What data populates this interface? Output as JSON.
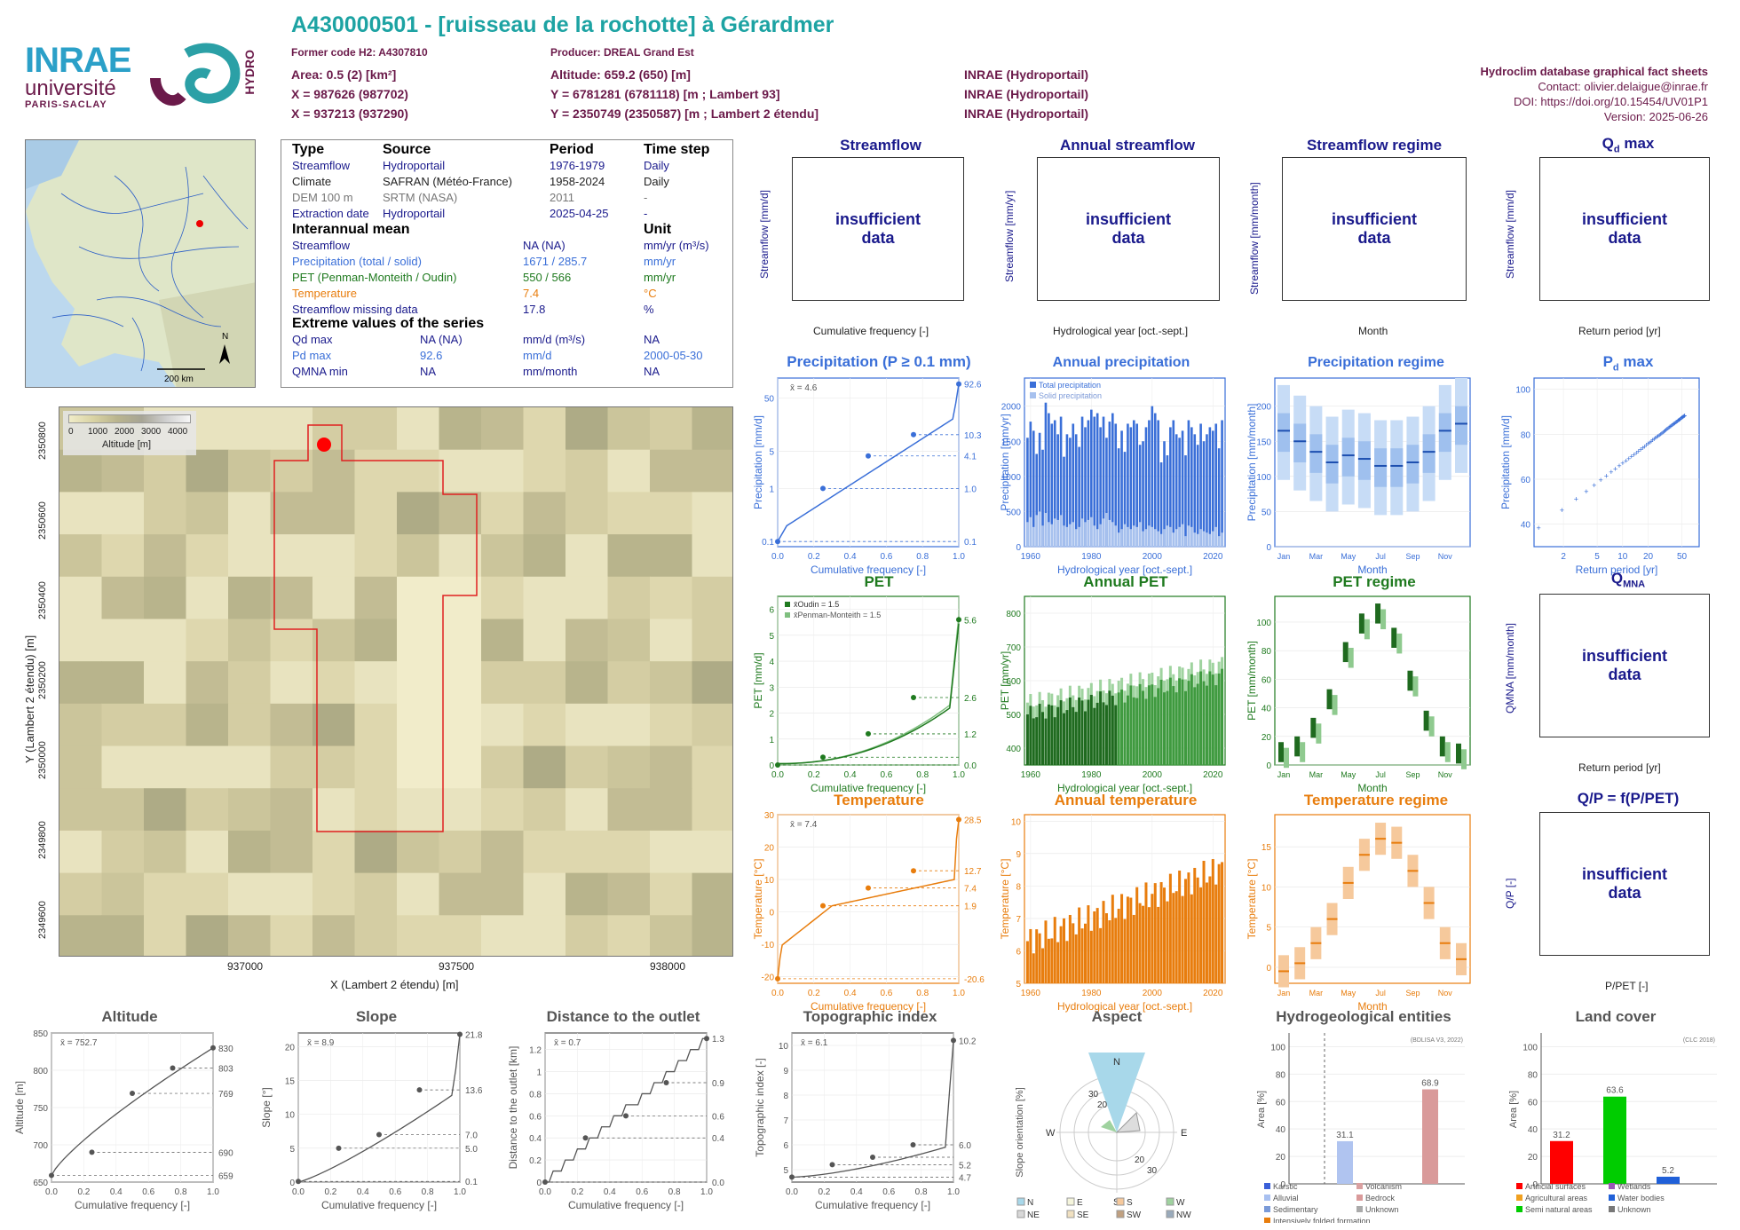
{
  "header": {
    "title": "A430000501 - [ruisseau de la rochotte] à Gérardmer",
    "former_code": "Former code H2: A4307810",
    "producer": "Producer: DREAL Grand Est",
    "area": "Area: 0.5 (2) [km²]",
    "altitude": "Altitude: 659.2 (650) [m]",
    "x_l93": "X = 987626 (987702)",
    "y_l93": "Y = 6781281 (6781118) [m ; Lambert 93]",
    "x_l2": "X = 937213 (937290)",
    "y_l2": "Y = 2350749 (2350587) [m ; Lambert 2 étendu]",
    "src1": "INRAE (Hydroportail)",
    "src2": "INRAE (Hydroportail)",
    "src3": "INRAE (Hydroportail)",
    "db_title": "Hydroclim database graphical fact sheets",
    "contact": "Contact: olivier.delaigue@inrae.fr",
    "doi": "DOI: https://doi.org/10.15454/UV01P1",
    "version": "Version: 2025-06-26"
  },
  "logos": {
    "inrae": "INRAE",
    "universite": "université",
    "paris_saclay": "PARIS-SACLAY",
    "hydro": "HYDRO"
  },
  "info": {
    "headers": [
      "Type",
      "Source",
      "Period",
      "Time step"
    ],
    "sources": [
      {
        "type": "Streamflow",
        "source": "Hydroportail",
        "period": "1976-1979",
        "step": "Daily",
        "color": "#1a1a8c"
      },
      {
        "type": "Climate",
        "source": "SAFRAN (Météo-France)",
        "period": "1958-2024",
        "step": "Daily",
        "color": "#222222"
      },
      {
        "type": "DEM 100 m",
        "source": "SRTM (NASA)",
        "period": "2011",
        "step": "-",
        "color": "#777777"
      },
      {
        "type": "Extraction date",
        "source": "Hydroportail",
        "period": "2025-04-25",
        "step": "-",
        "color": "#1a1a8c"
      }
    ],
    "interannual_title": "Interannual mean",
    "unit_title": "Unit",
    "means": [
      {
        "label": "Streamflow",
        "value": "NA (NA)",
        "unit": "mm/yr (m³/s)",
        "color": "#1a1a8c"
      },
      {
        "label": "Precipitation (total / solid)",
        "value": "1671 / 285.7",
        "unit": "mm/yr",
        "color": "#3a6fd8"
      },
      {
        "label": "PET (Penman-Monteith / Oudin)",
        "value": "550 / 566",
        "unit": "mm/yr",
        "color": "#1f7a1f"
      },
      {
        "label": "Temperature",
        "value": "7.4",
        "unit": "°C",
        "color": "#e87d0d"
      },
      {
        "label": "Streamflow missing data",
        "value": "17.8",
        "unit": "%",
        "color": "#1a1a8c"
      }
    ],
    "extreme_title": "Extreme values of the series",
    "extremes": [
      {
        "label": "Qd max",
        "value": "NA (NA)",
        "unit": "mm/d (m³/s)",
        "date": "NA",
        "color": "#1a1a8c"
      },
      {
        "label": "Pd max",
        "value": "92.6",
        "unit": "mm/d",
        "date": "2000-05-30",
        "color": "#3a6fd8"
      },
      {
        "label": "QMNA min",
        "value": "NA",
        "unit": "mm/month",
        "date": "NA",
        "color": "#1a1a8c"
      }
    ]
  },
  "overview_map": {
    "north": "N",
    "scale": "200 km"
  },
  "dem_map": {
    "legend_title": "Altitude [m]",
    "legend_ticks": [
      "0",
      "1000",
      "2000",
      "3000",
      "4000"
    ],
    "xlabel": "X (Lambert 2 étendu) [m]",
    "ylabel": "Y (Lambert 2 étendu) [m]",
    "xticks": [
      "937000",
      "937500",
      "938000"
    ],
    "yticks": [
      "2350800",
      "2350600",
      "2350400",
      "2350200",
      "2350000",
      "2349800",
      "2349600"
    ]
  },
  "panels": {
    "streamflow": {
      "title": "Streamflow",
      "ylabel": "Streamflow [mm/d]",
      "xlabel": "Cumulative frequency [-]",
      "msg": "insufficient data"
    },
    "annual_streamflow": {
      "title": "Annual streamflow",
      "ylabel": "Streamflow [mm/yr]",
      "xlabel": "Hydrological year [oct.-sept.]",
      "msg": "insufficient data"
    },
    "streamflow_regime": {
      "title": "Streamflow regime",
      "ylabel": "Streamflow [mm/month]",
      "xlabel": "Month",
      "msg": "insufficient data"
    },
    "qd_max": {
      "title": "Q",
      "title_sub": "d",
      "title_suffix": " max",
      "ylabel": "Streamflow [mm/d]",
      "xlabel": "Return period [yr]",
      "msg": "insufficient data"
    },
    "qmna": {
      "title": "Q",
      "title_sub": "MNA",
      "ylabel": "QMNA [mm/month]",
      "xlabel": "Return period [yr]",
      "msg": "insufficient data"
    },
    "qp": {
      "title": "Q/P = f(P/PET)",
      "ylabel": "Q/P [-]",
      "xlabel": "P/PET [-]",
      "msg": "insufficient data"
    },
    "precip": {
      "title": "Precipitation (P ≥ 0.1 mm)",
      "ylabel": "Precipitation [mm/d]",
      "xlabel": "Cumulative frequency [-]",
      "mean": "x̄ = 4.6"
    },
    "annual_precip": {
      "title": "Annual precipitation",
      "ylabel": "Precipitation [mm/yr]",
      "xlabel": "Hydrological year [oct.-sept.]",
      "leg1": "Total precipitation",
      "leg2": "Solid precipitation"
    },
    "precip_regime": {
      "title": "Precipitation regime",
      "ylabel": "Precipitation [mm/month]",
      "xlabel": "Month"
    },
    "pd_max": {
      "title": "P",
      "title_sub": "d",
      "title_suffix": " max",
      "ylabel": "Precipitation [mm/d]",
      "xlabel": "Return period [yr]"
    },
    "pet": {
      "title": "PET",
      "ylabel": "PET [mm/d]",
      "xlabel": "Cumulative frequency [-]",
      "leg1": "x̄Oudin = 1.5",
      "leg2": "x̄Penman-Monteith = 1.5"
    },
    "annual_pet": {
      "title": "Annual PET",
      "ylabel": "PET [mm/yr]",
      "xlabel": "Hydrological year [oct.-sept.]"
    },
    "pet_regime": {
      "title": "PET regime",
      "ylabel": "PET [mm/month]",
      "xlabel": "Month"
    },
    "temp": {
      "title": "Temperature",
      "ylabel": "Temperature [°C]",
      "xlabel": "Cumulative frequency [-]",
      "mean": "x̄ = 7.4"
    },
    "annual_temp": {
      "title": "Annual temperature",
      "ylabel": "Temperature [°C]",
      "xlabel": "Hydrological year [oct.-sept.]"
    },
    "temp_regime": {
      "title": "Temperature regime",
      "ylabel": "Temperature [°C]",
      "xlabel": "Month"
    },
    "altitude": {
      "title": "Altitude",
      "ylabel": "Altitude [m]",
      "xlabel": "Cumulative frequency [-]",
      "mean": "x̄ = 752.7"
    },
    "slope": {
      "title": "Slope",
      "ylabel": "Slope [°]",
      "xlabel": "Cumulative frequency [-]",
      "mean": "x̄ = 8.9"
    },
    "distance": {
      "title": "Distance to the outlet",
      "ylabel": "Distance to the outlet [km]",
      "xlabel": "Cumulative frequency [-]",
      "mean": "x̄ = 0.7"
    },
    "topo": {
      "title": "Topographic index",
      "ylabel": "Topographic index [-]",
      "xlabel": "Cumulative frequency [-]",
      "mean": "x̄ = 6.1"
    },
    "aspect": {
      "title": "Aspect",
      "ylabel": "Slope orientation [%]",
      "legend": [
        "N",
        "E",
        "S",
        "W",
        "NE",
        "SE",
        "SW",
        "NW"
      ]
    },
    "hydrogeo": {
      "title": "Hydrogeological entities",
      "ylabel": "Area [%]",
      "source": "(BDLISA V3, 2022)",
      "legend": [
        "Karstic",
        "Volcanism",
        "Alluvial",
        "Bedrock",
        "Sedimentary",
        "Unknown",
        "Intensively folded formation"
      ]
    },
    "landcover": {
      "title": "Land cover",
      "ylabel": "Area [%]",
      "source": "(CLC 2018)",
      "legend": [
        "Artificial surfaces",
        "Wetlands",
        "Agricultural areas",
        "Water bodies",
        "Semi natural areas",
        "Unknown"
      ]
    }
  },
  "chart_data": [
    {
      "type": "line",
      "title": "Precipitation (P ≥ 0.1 mm)",
      "xlabel": "Cumulative frequency [-]",
      "ylabel": "Precipitation [mm/d]",
      "log_y": true,
      "x": [
        0,
        0.25,
        0.5,
        0.75,
        1.0
      ],
      "y": [
        0.1,
        1.0,
        4.1,
        10.3,
        92.6
      ],
      "right_labels": [
        "92.6",
        "10.3",
        "4.1",
        "1.0",
        "0.1"
      ],
      "yticks": [
        "0.1",
        "1",
        "5",
        "50"
      ],
      "xticks": [
        "0.0",
        "0.2",
        "0.4",
        "0.6",
        "0.8",
        "1.0"
      ]
    },
    {
      "type": "bar",
      "title": "Annual precipitation",
      "xlabel": "Hydrological year [oct.-sept.]",
      "ylabel": "Precipitation [mm/yr]",
      "xticks": [
        "1960",
        "1980",
        "2000",
        "2020"
      ],
      "yticks": [
        "0",
        "500",
        "1000",
        "1500",
        "2000"
      ],
      "ylim": [
        0,
        2400
      ],
      "x": [
        1959,
        1960,
        1961,
        1962,
        1963,
        1964,
        1965,
        1966,
        1967,
        1968,
        1969,
        1970,
        1971,
        1972,
        1973,
        1974,
        1975,
        1976,
        1977,
        1978,
        1979,
        1980,
        1981,
        1982,
        1983,
        1984,
        1985,
        1986,
        1987,
        1988,
        1989,
        1990,
        1991,
        1992,
        1993,
        1994,
        1995,
        1996,
        1997,
        1998,
        1999,
        2000,
        2001,
        2002,
        2003,
        2004,
        2005,
        2006,
        2007,
        2008,
        2009,
        2010,
        2011,
        2012,
        2013,
        2014,
        2015,
        2016,
        2017,
        2018,
        2019,
        2020,
        2021,
        2022,
        2023
      ],
      "series": [
        {
          "name": "Total precipitation",
          "values": [
            1550,
            1780,
            1650,
            1320,
            1620,
            1380,
            2050,
            1900,
            1750,
            1800,
            1600,
            1850,
            1280,
            1600,
            1550,
            1750,
            1600,
            1420,
            1850,
            1700,
            1800,
            1950,
            1850,
            1900,
            1700,
            1850,
            1550,
            1780,
            1900,
            1750,
            1400,
            1650,
            1350,
            1750,
            1700,
            1800,
            1750,
            1450,
            1500,
            1700,
            1800,
            2000,
            1900,
            1800,
            1200,
            1500,
            1300,
            1700,
            1800,
            1600,
            1550,
            1650,
            1300,
            1800,
            1700,
            1600,
            1450,
            1750,
            1500,
            1600,
            1700,
            1650,
            1750,
            1400,
            1800
          ]
        },
        {
          "name": "Solid precipitation",
          "values": [
            350,
            420,
            280,
            450,
            500,
            300,
            480,
            350,
            320,
            400,
            380,
            450,
            300,
            280,
            320,
            350,
            250,
            280,
            400,
            350,
            380,
            420,
            300,
            250,
            320,
            400,
            480,
            380,
            350,
            300,
            200,
            250,
            320,
            280,
            250,
            300,
            280,
            350,
            220,
            250,
            300,
            280,
            250,
            220,
            180,
            250,
            300,
            280,
            200,
            250,
            280,
            320,
            150,
            300,
            280,
            200,
            180,
            250,
            220,
            200,
            180,
            220,
            280,
            150,
            200
          ]
        }
      ]
    }
  ]
}
